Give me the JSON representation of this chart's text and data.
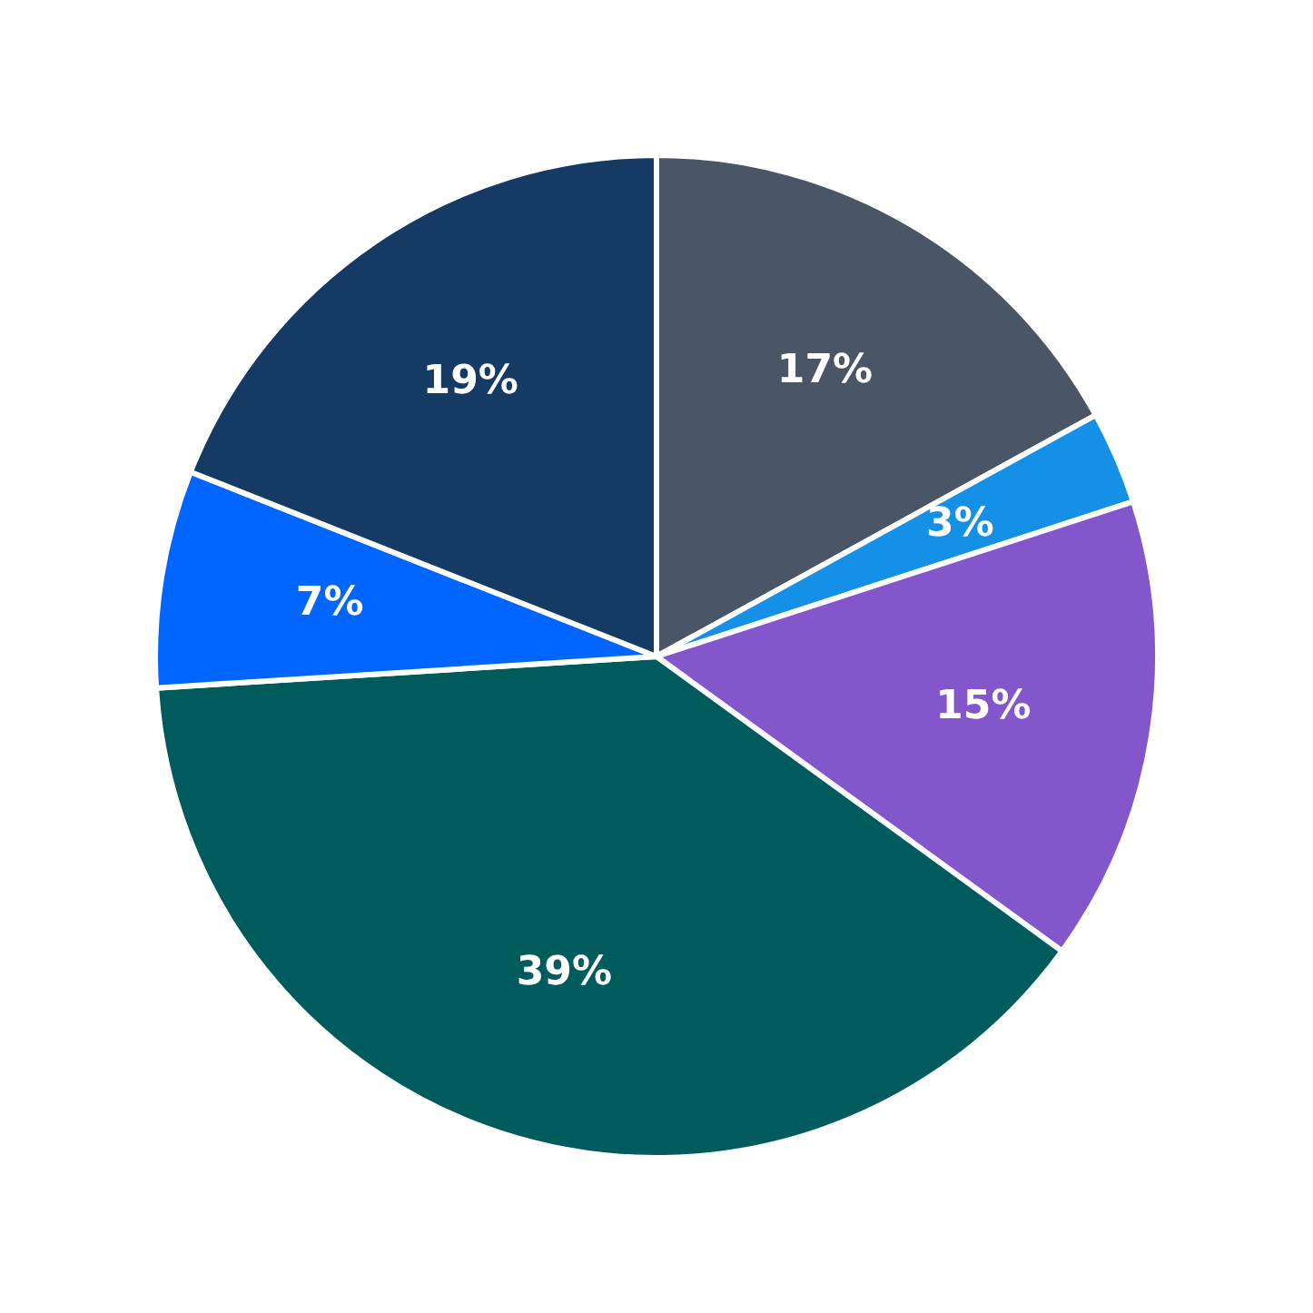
{
  "chart_data": {
    "type": "pie",
    "categories": [
      null,
      null,
      null,
      null,
      null,
      null
    ],
    "values": [
      17,
      3,
      15,
      39,
      7,
      19
    ],
    "value_labels": [
      "17%",
      "3%",
      "15%",
      "39%",
      "7%",
      "19%"
    ],
    "colors": [
      "#4a5565",
      "#1490e6",
      "#8456cc",
      "#005c5c",
      "#0066ff",
      "#153a63"
    ],
    "legend": false
  }
}
